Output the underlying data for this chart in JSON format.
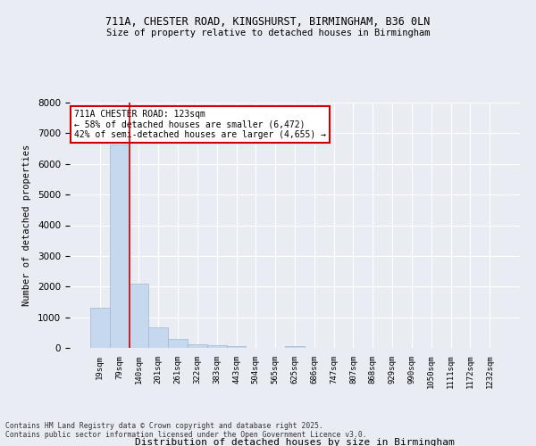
{
  "title_line1": "711A, CHESTER ROAD, KINGSHURST, BIRMINGHAM, B36 0LN",
  "title_line2": "Size of property relative to detached houses in Birmingham",
  "xlabel": "Distribution of detached houses by size in Birmingham",
  "ylabel": "Number of detached properties",
  "categories": [
    "19sqm",
    "79sqm",
    "140sqm",
    "201sqm",
    "261sqm",
    "322sqm",
    "383sqm",
    "443sqm",
    "504sqm",
    "565sqm",
    "625sqm",
    "686sqm",
    "747sqm",
    "807sqm",
    "868sqm",
    "929sqm",
    "990sqm",
    "1050sqm",
    "1111sqm",
    "1172sqm",
    "1232sqm"
  ],
  "values": [
    1300,
    6620,
    2090,
    660,
    290,
    120,
    80,
    55,
    0,
    0,
    60,
    0,
    0,
    0,
    0,
    0,
    0,
    0,
    0,
    0,
    0
  ],
  "bar_color": "#c5d8ed",
  "bar_edge_color": "#a0b8d0",
  "vline_x_index": 2,
  "vline_color": "#cc0000",
  "annotation_text": "711A CHESTER ROAD: 123sqm\n← 58% of detached houses are smaller (6,472)\n42% of semi-detached houses are larger (4,655) →",
  "annotation_box_color": "#ffffff",
  "annotation_box_edge": "#cc0000",
  "ylim": [
    0,
    8000
  ],
  "yticks": [
    0,
    1000,
    2000,
    3000,
    4000,
    5000,
    6000,
    7000,
    8000
  ],
  "bg_color": "#eaecf4",
  "plot_bg_color": "#eaecf4",
  "grid_color": "#ffffff",
  "footer_line1": "Contains HM Land Registry data © Crown copyright and database right 2025.",
  "footer_line2": "Contains public sector information licensed under the Open Government Licence v3.0."
}
